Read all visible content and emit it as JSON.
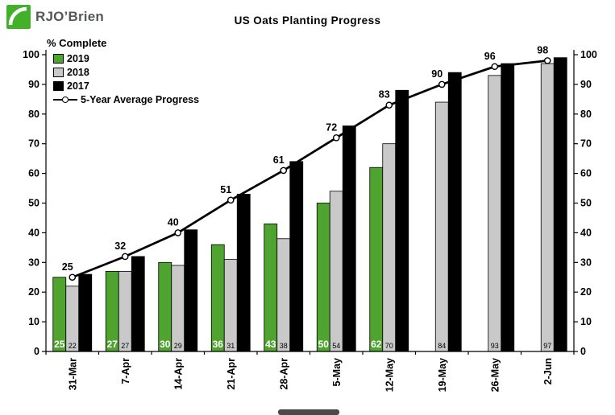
{
  "brand": {
    "name": "RJO’Brien"
  },
  "chart_data": {
    "type": "bar",
    "title": "US Oats Planting Progress",
    "ylabel": "% Complete",
    "xlabel": "",
    "ylim": [
      0,
      100
    ],
    "yticks": [
      0,
      10,
      20,
      30,
      40,
      50,
      60,
      70,
      80,
      90,
      100
    ],
    "grid": false,
    "legend_position": "top-left",
    "axis_labels_both_sides": true,
    "categories": [
      "31-Mar",
      "7-Apr",
      "14-Apr",
      "21-Apr",
      "28-Apr",
      "5-May",
      "12-May",
      "19-May",
      "26-May",
      "2-Jun"
    ],
    "series": [
      {
        "name": "2019",
        "type": "bar",
        "color": "#4fa32f",
        "show_labels": true,
        "values": [
          25,
          27,
          30,
          36,
          43,
          50,
          62,
          null,
          null,
          null
        ]
      },
      {
        "name": "2018",
        "type": "bar",
        "color": "#c9c9c9",
        "show_labels": true,
        "values": [
          22,
          27,
          29,
          31,
          38,
          54,
          70,
          84,
          93,
          97
        ]
      },
      {
        "name": "2017",
        "type": "bar",
        "color": "#000000",
        "show_labels": false,
        "values": [
          26,
          32,
          41,
          53,
          64,
          76,
          88,
          94,
          97,
          99
        ]
      },
      {
        "name": "5-Year Average Progress",
        "type": "line",
        "color": "#000000",
        "marker": "circle-white",
        "show_labels": true,
        "values": [
          25,
          32,
          40,
          51,
          61,
          72,
          83,
          90,
          96,
          98
        ]
      }
    ]
  }
}
